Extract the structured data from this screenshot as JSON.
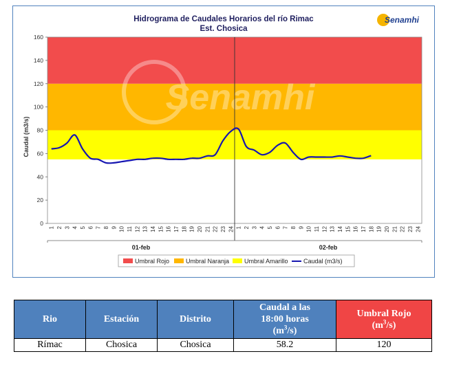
{
  "chart": {
    "title": "Hidrograma de Caudales Horarios del río Rimac",
    "subtitle": "Est. Chosica",
    "ylabel": "Caudal  (m3/s)",
    "logo_text": "Senamhi",
    "watermark": "Senamhi",
    "days": [
      "01-feb",
      "02-feb"
    ],
    "hour_ticks": [
      "1",
      "2",
      "3",
      "4",
      "5",
      "6",
      "7",
      "8",
      "9",
      "10",
      "11",
      "12",
      "13",
      "14",
      "15",
      "16",
      "17",
      "18",
      "19",
      "20",
      "21",
      "22",
      "23",
      "24"
    ],
    "legend": [
      "Umbral Rojo",
      "Umbral Naranja",
      "Umbral Amarillo",
      "Caudal (m3/s)"
    ],
    "colors": {
      "rojo": "#f24c4c",
      "naranja": "#ffb700",
      "amarillo": "#ffff00",
      "caudal": "#1616b0"
    }
  },
  "chart_data": {
    "type": "line",
    "title": "Hidrograma de Caudales Horarios del río Rimac",
    "subtitle": "Est. Chosica",
    "ylabel": "Caudal  (m3/s)",
    "xlabel": "",
    "ylim": [
      0,
      160
    ],
    "yticks": [
      0,
      20,
      40,
      60,
      80,
      100,
      120,
      140,
      160
    ],
    "thresholds": [
      {
        "name": "Umbral Amarillo",
        "from": 55,
        "to": 80
      },
      {
        "name": "Umbral Naranja",
        "from": 80,
        "to": 120
      },
      {
        "name": "Umbral Rojo",
        "from": 120,
        "to": 160
      }
    ],
    "series": [
      {
        "name": "Caudal (m3/s)",
        "day1": [
          64,
          65,
          69,
          76,
          64,
          56,
          55,
          52,
          52,
          53,
          54,
          55,
          55,
          56,
          56,
          55,
          55,
          55,
          56,
          56,
          58,
          59,
          71,
          79
        ],
        "day2": [
          81,
          66,
          63,
          59,
          61,
          67,
          69,
          61,
          55,
          57,
          57,
          57,
          57,
          58,
          57,
          56,
          56,
          58.2
        ]
      }
    ],
    "legend_position": "bottom"
  },
  "table": {
    "headers": [
      "Rio",
      "Estación",
      "Distrito",
      "Caudal a las",
      "18:00 horas",
      "(m",
      "/s)",
      "Umbral Rojo",
      "(m",
      "/s)"
    ],
    "sup": "3",
    "row": [
      "Rímac",
      "Chosica",
      "Chosica",
      "58.2",
      "120"
    ]
  }
}
